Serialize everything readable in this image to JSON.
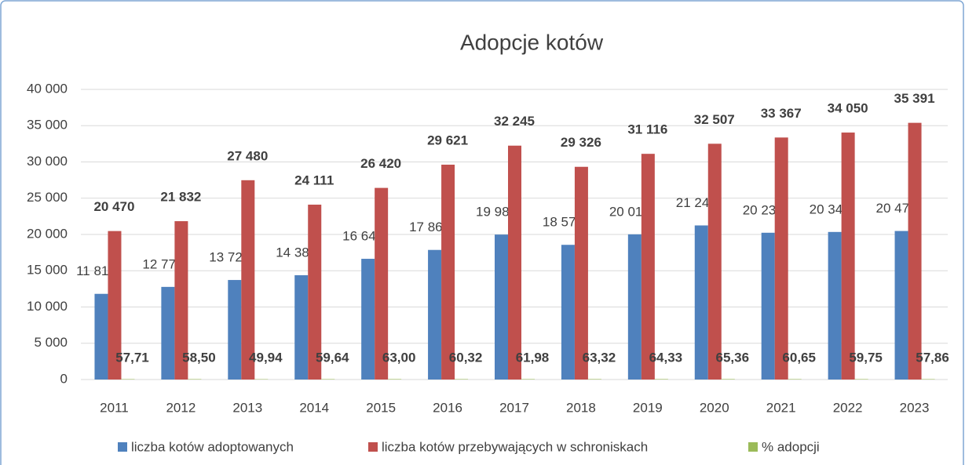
{
  "chart_data": {
    "type": "bar",
    "title": "Adopcje kotów",
    "categories": [
      "2011",
      "2012",
      "2013",
      "2014",
      "2015",
      "2016",
      "2017",
      "2018",
      "2019",
      "2020",
      "2021",
      "2022",
      "2023"
    ],
    "series": [
      {
        "name": "liczba kotów adoptowanych",
        "color": "#4f81bd",
        "values": [
          11813,
          12772,
          13723,
          14380,
          16644,
          17868,
          19985,
          18570,
          20017,
          21245,
          20237,
          20345,
          20478
        ],
        "value_labels": [
          "11 813",
          "12 772",
          "13 723",
          "14 380",
          "16 644",
          "17 868",
          "19 985",
          "18 570",
          "20 017",
          "21 245",
          "20 237",
          "20 345",
          "20 478"
        ]
      },
      {
        "name": "liczba kotów przebywających w schroniskach",
        "color": "#c0504d",
        "values": [
          20470,
          21832,
          27480,
          24111,
          26420,
          29621,
          32245,
          29326,
          31116,
          32507,
          33367,
          34050,
          35391
        ],
        "value_labels": [
          "20 470",
          "21 832",
          "27 480",
          "24 111",
          "26 420",
          "29 621",
          "32 245",
          "29 326",
          "31 116",
          "32 507",
          "33 367",
          "34 050",
          "35 391"
        ]
      },
      {
        "name": "% adopcji",
        "color": "#9bbb59",
        "values": [
          57.71,
          58.5,
          49.94,
          59.64,
          63.0,
          60.32,
          61.98,
          63.32,
          64.33,
          65.36,
          60.65,
          59.75,
          57.86
        ],
        "value_labels": [
          "57,71",
          "58,50",
          "49,94",
          "59,64",
          "63,00",
          "60,32",
          "61,98",
          "63,32",
          "64,33",
          "65,36",
          "60,65",
          "59,75",
          "57,86"
        ]
      }
    ],
    "ylim": [
      0,
      40000
    ],
    "yticks": [
      0,
      {
        "value": 5000,
        "label": "5 000"
      },
      {
        "value": 10000,
        "label": "10 000"
      },
      {
        "value": 15000,
        "label": "15 000"
      },
      {
        "value": 20000,
        "label": "20 000"
      },
      {
        "value": 25000,
        "label": "25 000"
      },
      {
        "value": 30000,
        "label": "30 000"
      },
      {
        "value": 35000,
        "label": "35 000"
      },
      {
        "value": 40000,
        "label": "40 000"
      }
    ],
    "grid": true,
    "legend": "bottom"
  }
}
